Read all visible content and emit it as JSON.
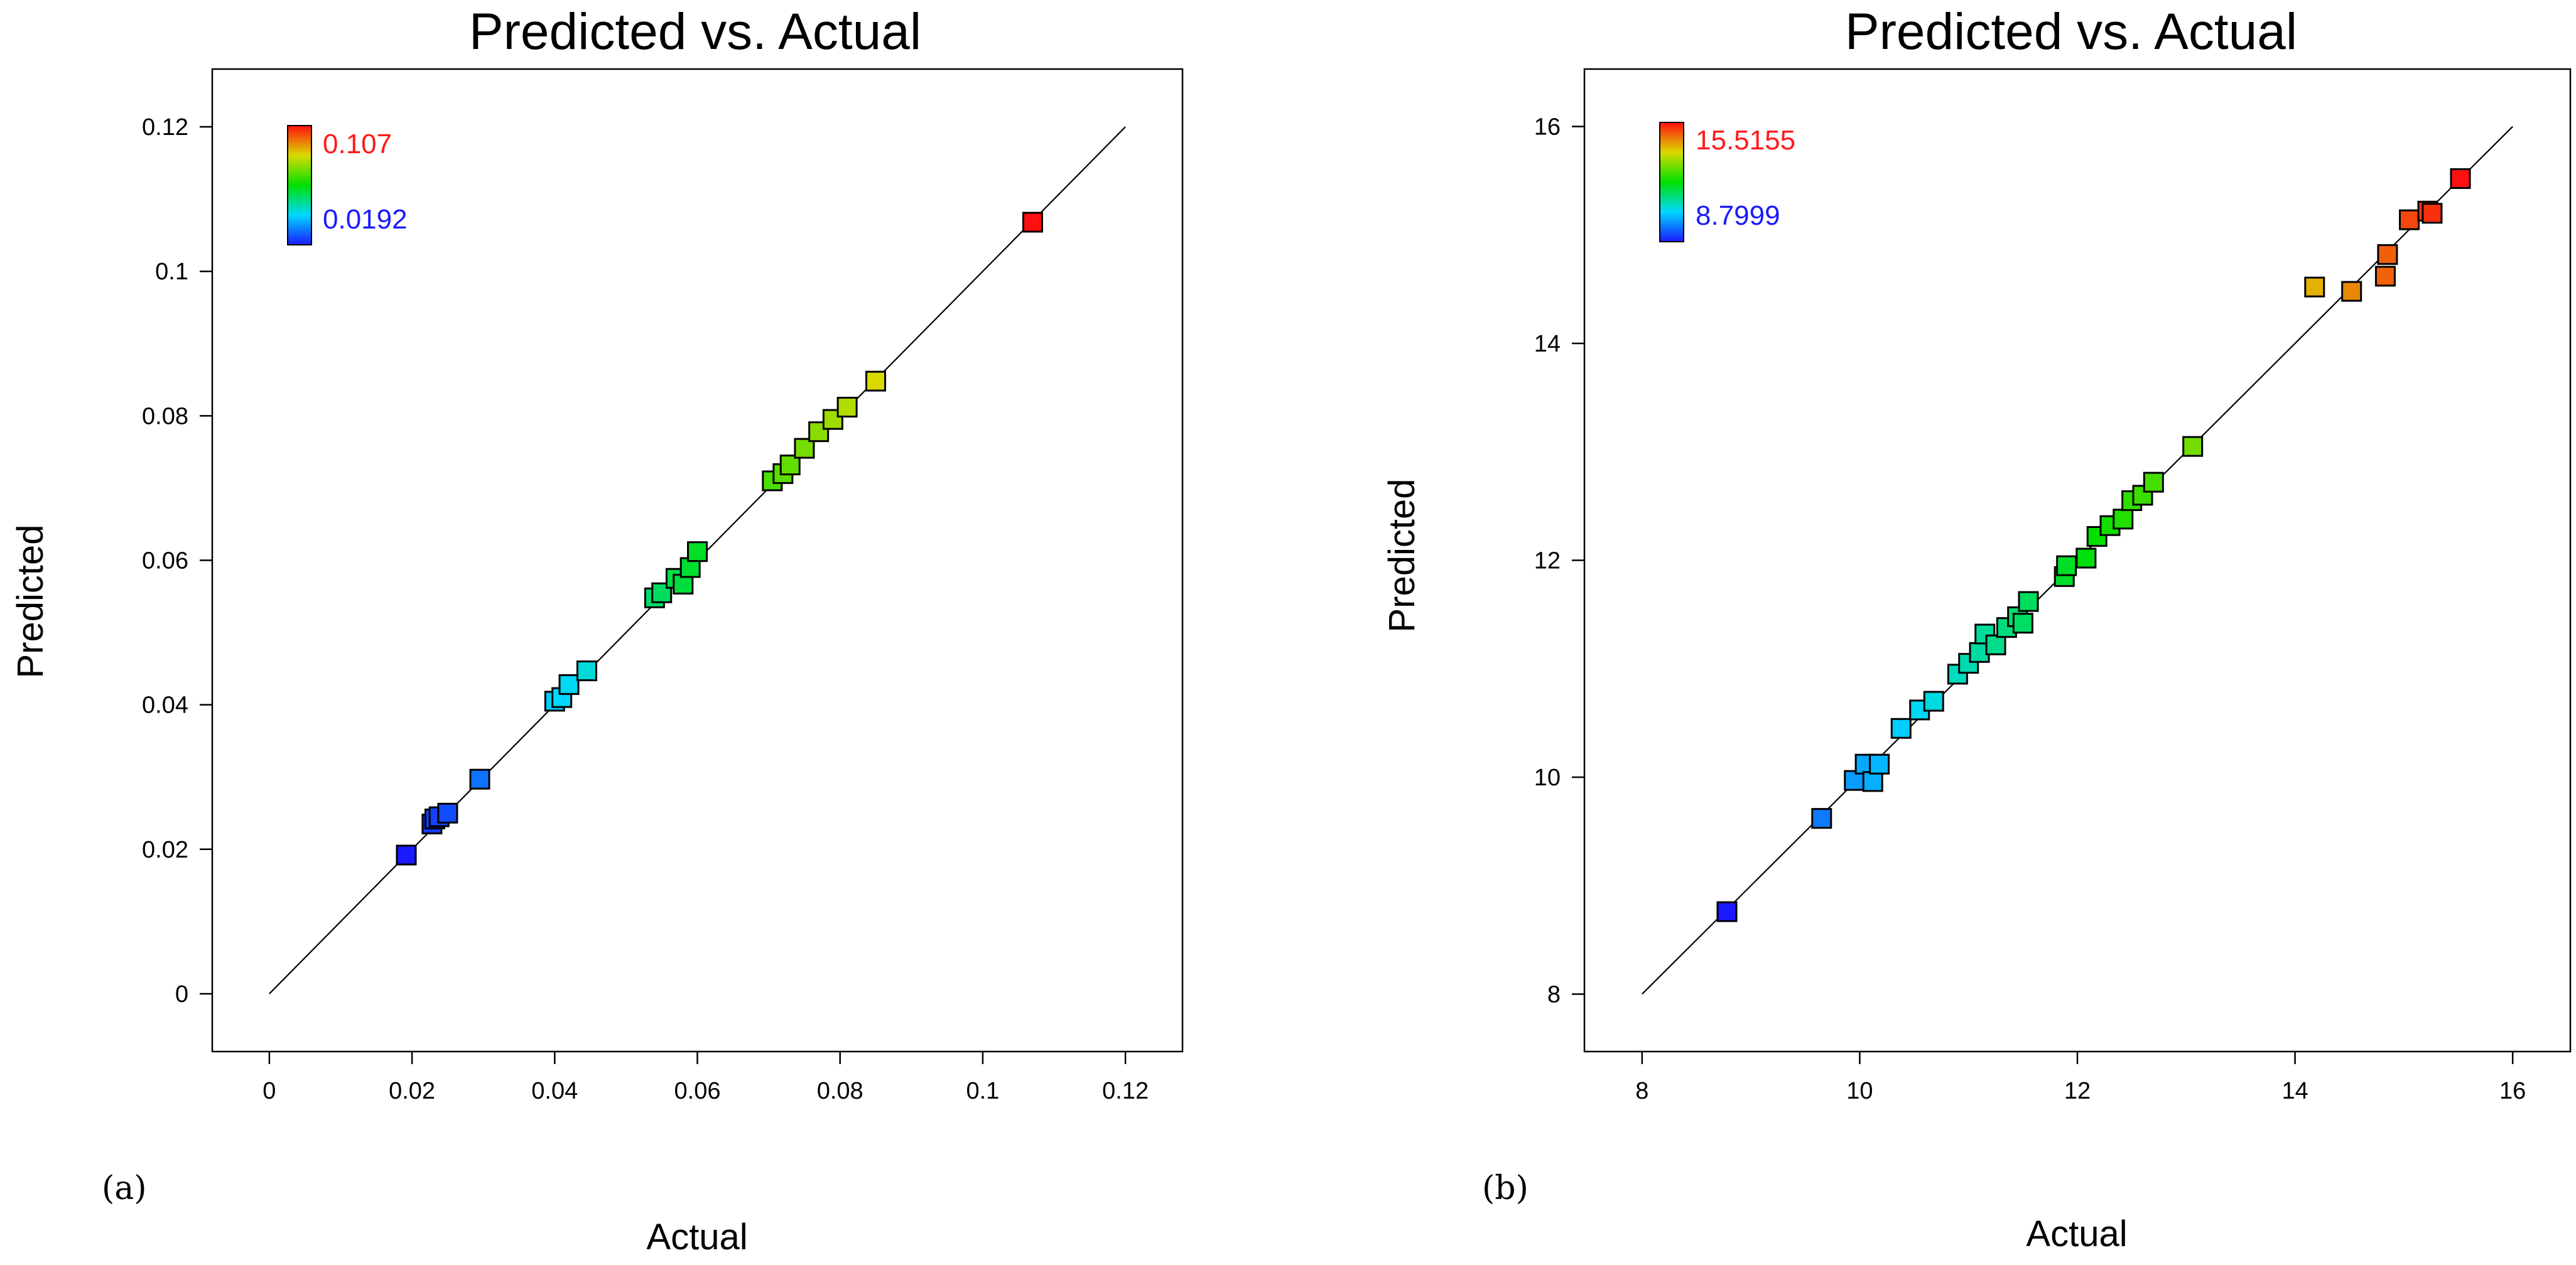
{
  "chart_data": [
    {
      "type": "scatter",
      "panel_label": "(a)",
      "title": "Predicted vs. Actual",
      "xlabel": "Actual",
      "ylabel": "Predicted",
      "xlim": [
        -0.008,
        0.128
      ],
      "ylim": [
        -0.008,
        0.128
      ],
      "xticks": [
        0,
        0.02,
        0.04,
        0.06,
        0.08,
        0.1,
        0.12
      ],
      "yticks": [
        0,
        0.02,
        0.04,
        0.06,
        0.08,
        0.1,
        0.12
      ],
      "xtick_labels": [
        "0",
        "0.02",
        "0.04",
        "0.06",
        "0.08",
        "0.1",
        "0.12"
      ],
      "ytick_labels": [
        "0",
        "0.02",
        "0.04",
        "0.06",
        "0.08",
        "0.1",
        "0.12"
      ],
      "reference_line": [
        0,
        0.12
      ],
      "color_scale": {
        "min": 0.0192,
        "max": 0.107,
        "min_label": "0.0192",
        "max_label": "0.107",
        "min_color": "#1a1aff",
        "max_color": "#ff1a1a"
      },
      "points": [
        {
          "x": 0.0192,
          "y": 0.0192
        },
        {
          "x": 0.0228,
          "y": 0.0235
        },
        {
          "x": 0.0232,
          "y": 0.0242
        },
        {
          "x": 0.0238,
          "y": 0.0245
        },
        {
          "x": 0.025,
          "y": 0.025
        },
        {
          "x": 0.0295,
          "y": 0.0297
        },
        {
          "x": 0.04,
          "y": 0.0405
        },
        {
          "x": 0.041,
          "y": 0.041
        },
        {
          "x": 0.042,
          "y": 0.0428
        },
        {
          "x": 0.0445,
          "y": 0.0447
        },
        {
          "x": 0.054,
          "y": 0.0548
        },
        {
          "x": 0.055,
          "y": 0.0555
        },
        {
          "x": 0.057,
          "y": 0.0575
        },
        {
          "x": 0.058,
          "y": 0.0567
        },
        {
          "x": 0.059,
          "y": 0.059
        },
        {
          "x": 0.06,
          "y": 0.0612
        },
        {
          "x": 0.0705,
          "y": 0.071
        },
        {
          "x": 0.072,
          "y": 0.072
        },
        {
          "x": 0.073,
          "y": 0.0732
        },
        {
          "x": 0.075,
          "y": 0.0755
        },
        {
          "x": 0.077,
          "y": 0.0778
        },
        {
          "x": 0.079,
          "y": 0.0795
        },
        {
          "x": 0.081,
          "y": 0.0812
        },
        {
          "x": 0.085,
          "y": 0.0848
        },
        {
          "x": 0.107,
          "y": 0.1068
        }
      ]
    },
    {
      "type": "scatter",
      "panel_label": "(b)",
      "title": "Predicted vs. Actual",
      "xlabel": "Actual",
      "ylabel": "Predicted",
      "xlim": [
        7.47,
        16.53
      ],
      "ylim": [
        7.47,
        16.53
      ],
      "xticks": [
        8,
        10,
        12,
        14,
        16
      ],
      "yticks": [
        8,
        10,
        12,
        14,
        16
      ],
      "xtick_labels": [
        "8",
        "10",
        "12",
        "14",
        "16"
      ],
      "ytick_labels": [
        "8",
        "10",
        "12",
        "14",
        "16"
      ],
      "reference_line": [
        8,
        16
      ],
      "color_scale": {
        "min": 8.7999,
        "max": 15.5155,
        "min_label": "8.7999",
        "max_label": "15.5155",
        "min_color": "#1a1aff",
        "max_color": "#ff1a1a"
      },
      "points": [
        {
          "x": 8.78,
          "y": 8.76
        },
        {
          "x": 9.65,
          "y": 9.62
        },
        {
          "x": 9.95,
          "y": 9.97
        },
        {
          "x": 10.05,
          "y": 10.12
        },
        {
          "x": 10.12,
          "y": 9.96
        },
        {
          "x": 10.18,
          "y": 10.12
        },
        {
          "x": 10.38,
          "y": 10.45
        },
        {
          "x": 10.55,
          "y": 10.62
        },
        {
          "x": 10.68,
          "y": 10.7
        },
        {
          "x": 10.9,
          "y": 10.95
        },
        {
          "x": 11.0,
          "y": 11.05
        },
        {
          "x": 11.1,
          "y": 11.15
        },
        {
          "x": 11.15,
          "y": 11.32
        },
        {
          "x": 11.25,
          "y": 11.22
        },
        {
          "x": 11.35,
          "y": 11.38
        },
        {
          "x": 11.45,
          "y": 11.48
        },
        {
          "x": 11.5,
          "y": 11.42
        },
        {
          "x": 11.55,
          "y": 11.62
        },
        {
          "x": 11.88,
          "y": 11.85
        },
        {
          "x": 11.9,
          "y": 11.95
        },
        {
          "x": 12.08,
          "y": 12.02
        },
        {
          "x": 12.18,
          "y": 12.22
        },
        {
          "x": 12.3,
          "y": 12.32
        },
        {
          "x": 12.42,
          "y": 12.38
        },
        {
          "x": 12.5,
          "y": 12.55
        },
        {
          "x": 12.6,
          "y": 12.6
        },
        {
          "x": 12.7,
          "y": 12.72
        },
        {
          "x": 13.06,
          "y": 13.05
        },
        {
          "x": 14.18,
          "y": 14.52
        },
        {
          "x": 14.52,
          "y": 14.48
        },
        {
          "x": 14.83,
          "y": 14.62
        },
        {
          "x": 14.85,
          "y": 14.82
        },
        {
          "x": 15.05,
          "y": 15.14
        },
        {
          "x": 15.22,
          "y": 15.22
        },
        {
          "x": 15.26,
          "y": 15.2
        },
        {
          "x": 15.52,
          "y": 15.52
        }
      ]
    }
  ]
}
